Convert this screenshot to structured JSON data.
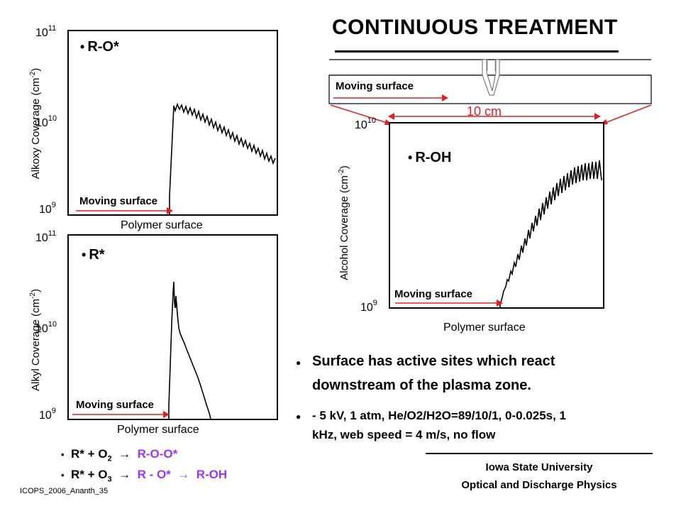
{
  "title": "CONTINUOUS TREATMENT",
  "colors": {
    "accent_purple": "#9933FF",
    "arrow_red": "#E02020",
    "text": "#000000"
  },
  "plots": {
    "alkoxy": {
      "ylabel": "Alkoxy Coverage (cm",
      "ylabel_sup": "-2",
      "ylabel_end": ")",
      "tick_top": "10",
      "tick_top_exp": "11",
      "tick_mid": "10",
      "tick_mid_exp": "10",
      "tick_bot": "10",
      "tick_bot_exp": "9",
      "xlabel": "Polymer surface",
      "species": "R-O*",
      "moving": "Moving surface"
    },
    "alkyl": {
      "ylabel": "Alkyl Coverage (cm",
      "ylabel_sup": "-2",
      "ylabel_end": ")",
      "tick_top": "10",
      "tick_top_exp": "11",
      "tick_mid": "10",
      "tick_mid_exp": "10",
      "tick_bot": "10",
      "tick_bot_exp": "9",
      "xlabel": "Polymer surface",
      "species": "R*",
      "moving": "Moving surface"
    },
    "alcohol": {
      "ylabel": "Alcohol Coverage (cm",
      "ylabel_sup": "-2",
      "ylabel_end": ")",
      "tick_top": "10",
      "tick_top_exp": "10",
      "tick_bot": "10",
      "tick_bot_exp": "9",
      "xlabel": "Polymer surface",
      "species": "R-OH",
      "moving": "Moving surface"
    }
  },
  "schematic": {
    "moving": "Moving surface",
    "scale": "10 cm"
  },
  "bullets": {
    "main": [
      "Surface has active sites which react",
      "downstream of the plasma zone."
    ],
    "sub": [
      "- 5 kV, 1 atm, He/O2/H2O=89/10/1, 0-0.025s, 1",
      "kHz, web speed = 4 m/s, no flow"
    ]
  },
  "equations": {
    "eq1": {
      "left": "R* + O",
      "sub": "2",
      "arrow": "",
      "right": "R-O-O*"
    },
    "eq2": {
      "left": "R* + O",
      "sub": "3",
      "arrow": "",
      "mid": "R - O*",
      "arrow2": "",
      "right": "R-OH"
    }
  },
  "footer": {
    "line1": "Iowa State University",
    "line2": "Optical and Discharge Physics"
  },
  "slide_id": "ICOPS_2006_Ananth_35"
}
